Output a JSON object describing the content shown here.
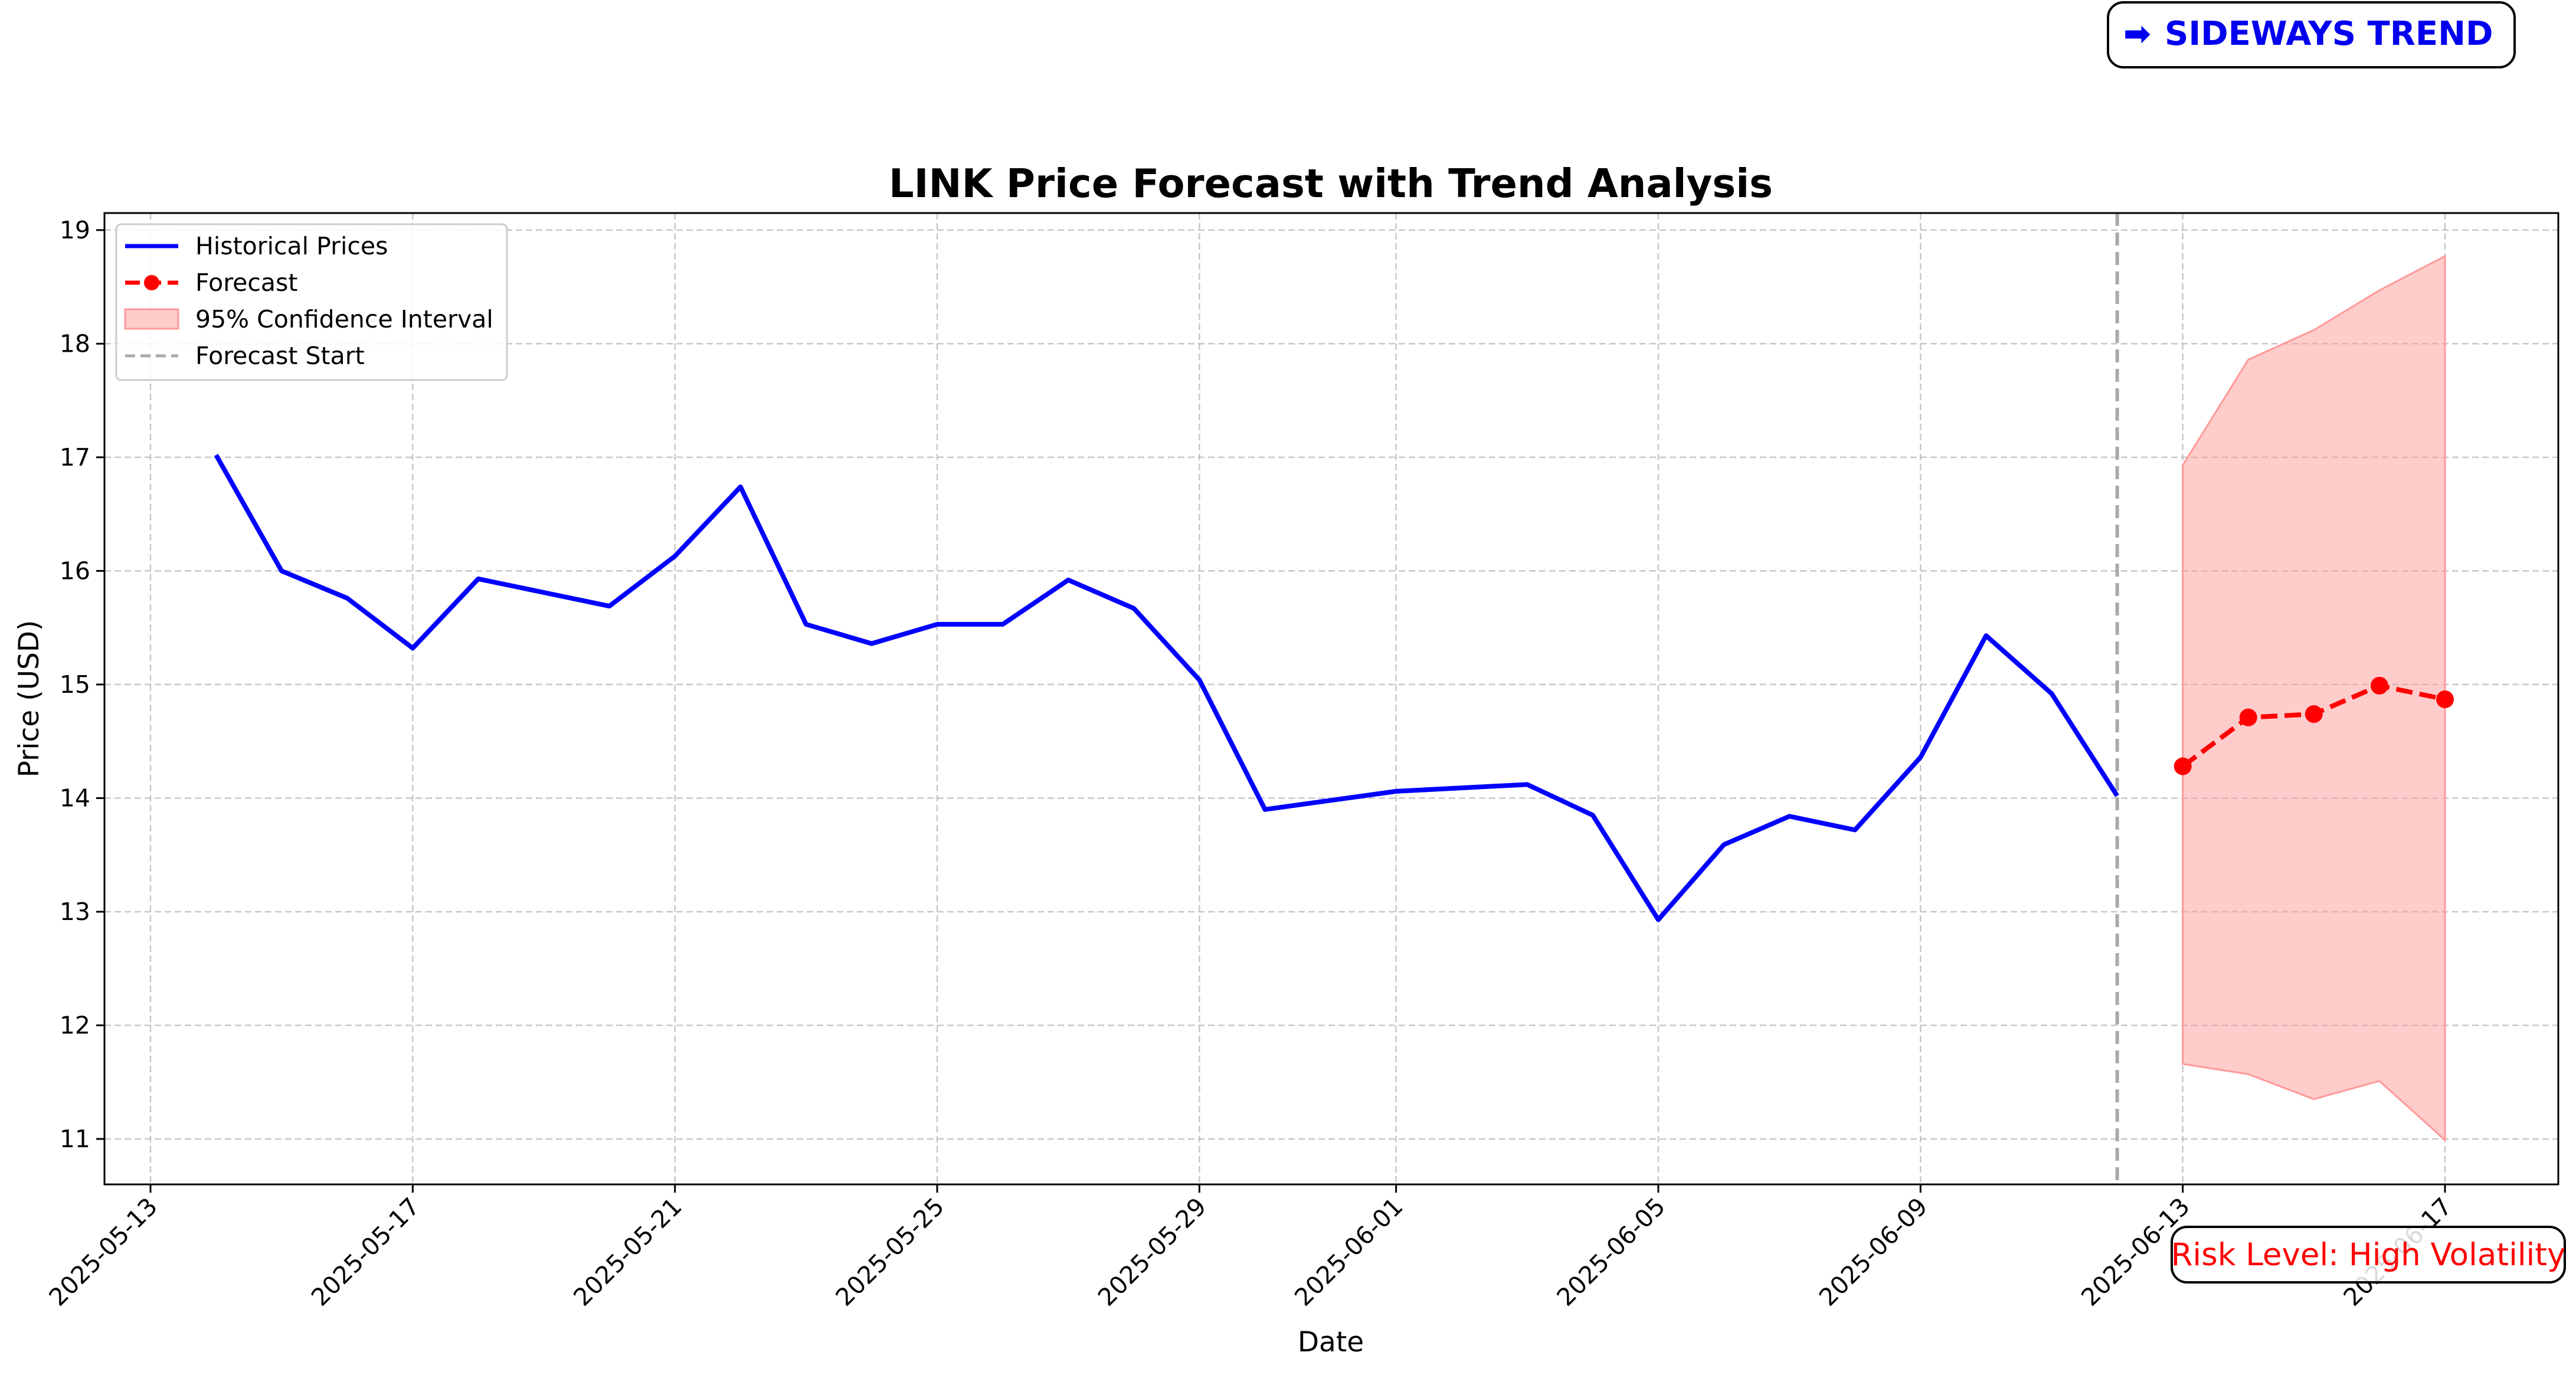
{
  "chart_data": {
    "type": "line",
    "title": "LINK Price Forecast with Trend Analysis",
    "xlabel": "Date",
    "ylabel": "Price (USD)",
    "x_range": [
      "2025-05-13T00:00",
      "2025-06-17T00:00"
    ],
    "ylim": [
      10.6,
      19.15
    ],
    "grid": true,
    "legend_position": "upper-left",
    "x_ticks": [
      "2025-05-13",
      "2025-05-17",
      "2025-05-21",
      "2025-05-25",
      "2025-05-29",
      "2025-06-01",
      "2025-06-05",
      "2025-06-09",
      "2025-06-13",
      "2025-06-17"
    ],
    "y_ticks": [
      11,
      12,
      13,
      14,
      15,
      16,
      17,
      18,
      19
    ],
    "series": [
      {
        "name": "Historical Prices",
        "color": "#0000ff",
        "style": "solid",
        "x": [
          "2025-05-14",
          "2025-05-15",
          "2025-05-16",
          "2025-05-17",
          "2025-05-18",
          "2025-05-19",
          "2025-05-20",
          "2025-05-21",
          "2025-05-22",
          "2025-05-23",
          "2025-05-24",
          "2025-05-25",
          "2025-05-26",
          "2025-05-27",
          "2025-05-28",
          "2025-05-29",
          "2025-05-30",
          "2025-05-31",
          "2025-06-01",
          "2025-06-02",
          "2025-06-03",
          "2025-06-04",
          "2025-06-05",
          "2025-06-06",
          "2025-06-07",
          "2025-06-08",
          "2025-06-09",
          "2025-06-10",
          "2025-06-11",
          "2025-06-12"
        ],
        "values": [
          17.02,
          16.0,
          15.76,
          15.32,
          15.93,
          15.81,
          15.69,
          16.13,
          16.74,
          15.53,
          15.36,
          15.53,
          15.53,
          15.92,
          15.67,
          15.04,
          13.9,
          13.98,
          14.06,
          14.09,
          14.12,
          13.85,
          12.93,
          13.59,
          13.84,
          13.72,
          14.36,
          15.43,
          14.92,
          14.02
        ]
      },
      {
        "name": "Forecast",
        "color": "#ff0000",
        "style": "dashed-markers",
        "x": [
          "2025-06-13",
          "2025-06-14",
          "2025-06-15",
          "2025-06-16",
          "2025-06-17"
        ],
        "values": [
          14.28,
          14.71,
          14.74,
          14.99,
          14.87
        ]
      },
      {
        "name": "95% Confidence Interval",
        "color": "#ff9999",
        "style": "band",
        "x": [
          "2025-06-13",
          "2025-06-14",
          "2025-06-15",
          "2025-06-16",
          "2025-06-17"
        ],
        "upper": [
          16.93,
          17.86,
          18.12,
          18.47,
          18.77
        ],
        "lower": [
          11.66,
          11.57,
          11.35,
          11.51,
          10.99
        ]
      },
      {
        "name": "Forecast Start",
        "color": "#aaaaaa",
        "style": "vertical-dashed",
        "x": "2025-06-12"
      }
    ]
  },
  "annotations": {
    "trend_icon": "right-arrow-icon",
    "trend_arrow": "➡",
    "trend_label": "SIDEWAYS TREND",
    "risk_label": "Risk Level: High Volatility"
  }
}
